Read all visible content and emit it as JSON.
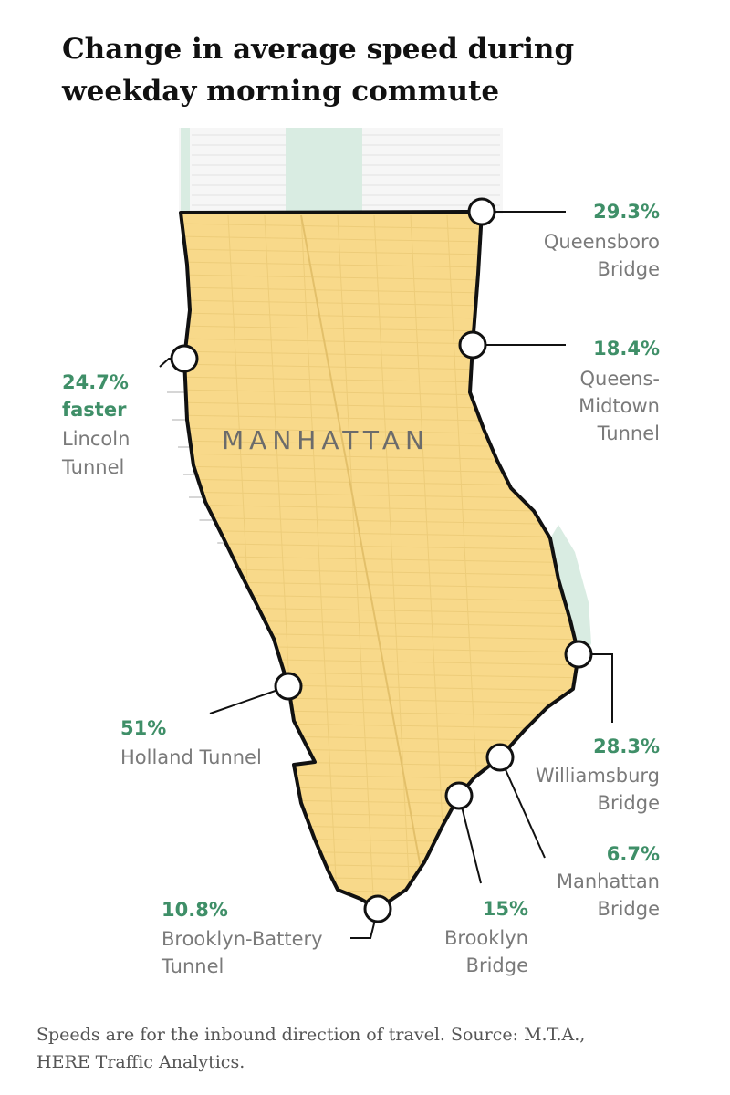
{
  "title_lines": [
    "Change in average speed during",
    "weekday morning commute"
  ],
  "borough_label": "MANHATTAN",
  "crossings": [
    {
      "id": "queensboro",
      "pct": "29.3%",
      "label_lines": [
        "Queensboro",
        "Bridge"
      ]
    },
    {
      "id": "queens-midtown",
      "pct": "18.4%",
      "label_lines": [
        "Queens-",
        "Midtown",
        "Tunnel"
      ]
    },
    {
      "id": "lincoln",
      "pct": "24.7%",
      "pct_extra": "faster",
      "label_lines": [
        "Lincoln",
        "Tunnel"
      ]
    },
    {
      "id": "holland",
      "pct": "51%",
      "label_lines": [
        "Holland Tunnel"
      ]
    },
    {
      "id": "williamsburg",
      "pct": "28.3%",
      "label_lines": [
        "Williamsburg",
        "Bridge"
      ]
    },
    {
      "id": "manhattan-bridge",
      "pct": "6.7%",
      "label_lines": [
        "Manhattan",
        "Bridge"
      ]
    },
    {
      "id": "brooklyn-bridge",
      "pct": "15%",
      "label_lines": [
        "Brooklyn",
        "Bridge"
      ]
    },
    {
      "id": "brooklyn-battery",
      "pct": "10.8%",
      "label_lines": [
        "Brooklyn-Battery",
        "Tunnel"
      ]
    }
  ],
  "note_lines": [
    "Speeds are for the inbound direction of travel. Source: M.T.A.,",
    "HERE Traffic Analytics."
  ],
  "colors": {
    "zone_fill": "#f8d98a",
    "park": "#d9ece2",
    "boundary": "#111111",
    "percent_text": "#3f8f68",
    "label_text": "#7a7a7a"
  }
}
